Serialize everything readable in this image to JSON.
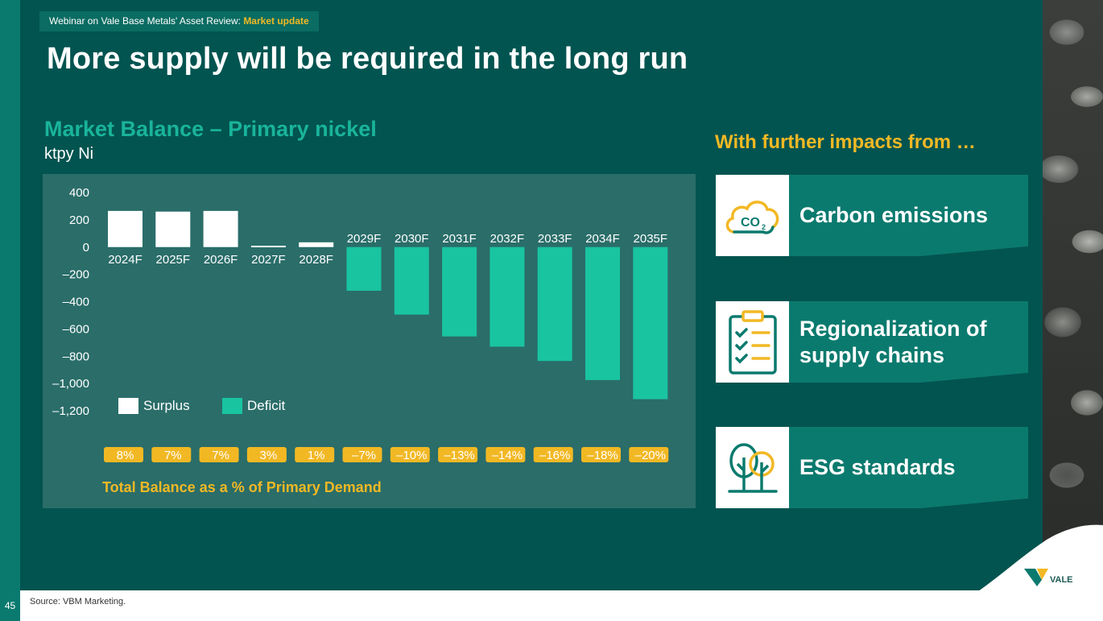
{
  "page_number": "45",
  "header": {
    "webinar_prefix": "Webinar on Vale Base Metals' Asset Review:",
    "webinar_highlight": "Market update"
  },
  "title": "More supply will be required in the long run",
  "chart_title": "Market Balance – Primary nickel",
  "chart_unit": "ktpy Ni",
  "impacts": {
    "heading": "With further impacts from …",
    "items": [
      {
        "label": "Carbon emissions",
        "icon": "co2-cloud-icon"
      },
      {
        "label": "Regionalization of\nsupply chains",
        "icon": "clipboard-checklist-icon"
      },
      {
        "label": "ESG standards",
        "icon": "trees-icon"
      }
    ]
  },
  "source": "Source: VBM Marketing.",
  "logo_text": "VALE",
  "colors": {
    "background": "#025450",
    "surplus": "#ffffff",
    "deficit": "#19c4a1",
    "accent": "#f2b824",
    "panel": "#2a6d69"
  },
  "chart_data": {
    "type": "bar",
    "title": "Market Balance – Primary nickel",
    "ylabel": "ktpy Ni",
    "categories": [
      "2024F",
      "2025F",
      "2026F",
      "2027F",
      "2028F",
      "2029F",
      "2030F",
      "2031F",
      "2032F",
      "2033F",
      "2034F",
      "2035F"
    ],
    "values": [
      265,
      260,
      265,
      10,
      35,
      -320,
      -495,
      -655,
      -730,
      -835,
      -975,
      -1115
    ],
    "ylim": [
      -1200,
      400
    ],
    "yticks": [
      400,
      200,
      0,
      -200,
      -400,
      -600,
      -800,
      -1000,
      -1200
    ],
    "ytick_labels": [
      "400",
      "200",
      "0",
      "–200",
      "–400",
      "–600",
      "–800",
      "–1,000",
      "–1,200"
    ],
    "legend": [
      {
        "name": "Surplus",
        "color": "#ffffff"
      },
      {
        "name": "Deficit",
        "color": "#19c4a1"
      }
    ],
    "balance_pct_labels": [
      "8%",
      "7%",
      "7%",
      "3%",
      "1%",
      "–7%",
      "–10%",
      "–13%",
      "–14%",
      "–16%",
      "–18%",
      "–20%"
    ],
    "balance_pct_title": "Total Balance as a % of Primary Demand",
    "grid": false
  }
}
